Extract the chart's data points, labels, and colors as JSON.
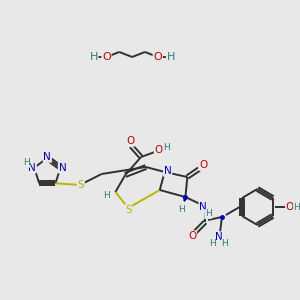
{
  "bg_color": "#e8e8e8",
  "atom_colors": {
    "N": "#0000cc",
    "O": "#cc0000",
    "S": "#b8b800",
    "H": "#2e7b7b"
  },
  "bond_color": "#303030",
  "figsize": [
    3.0,
    3.0
  ],
  "dpi": 100
}
